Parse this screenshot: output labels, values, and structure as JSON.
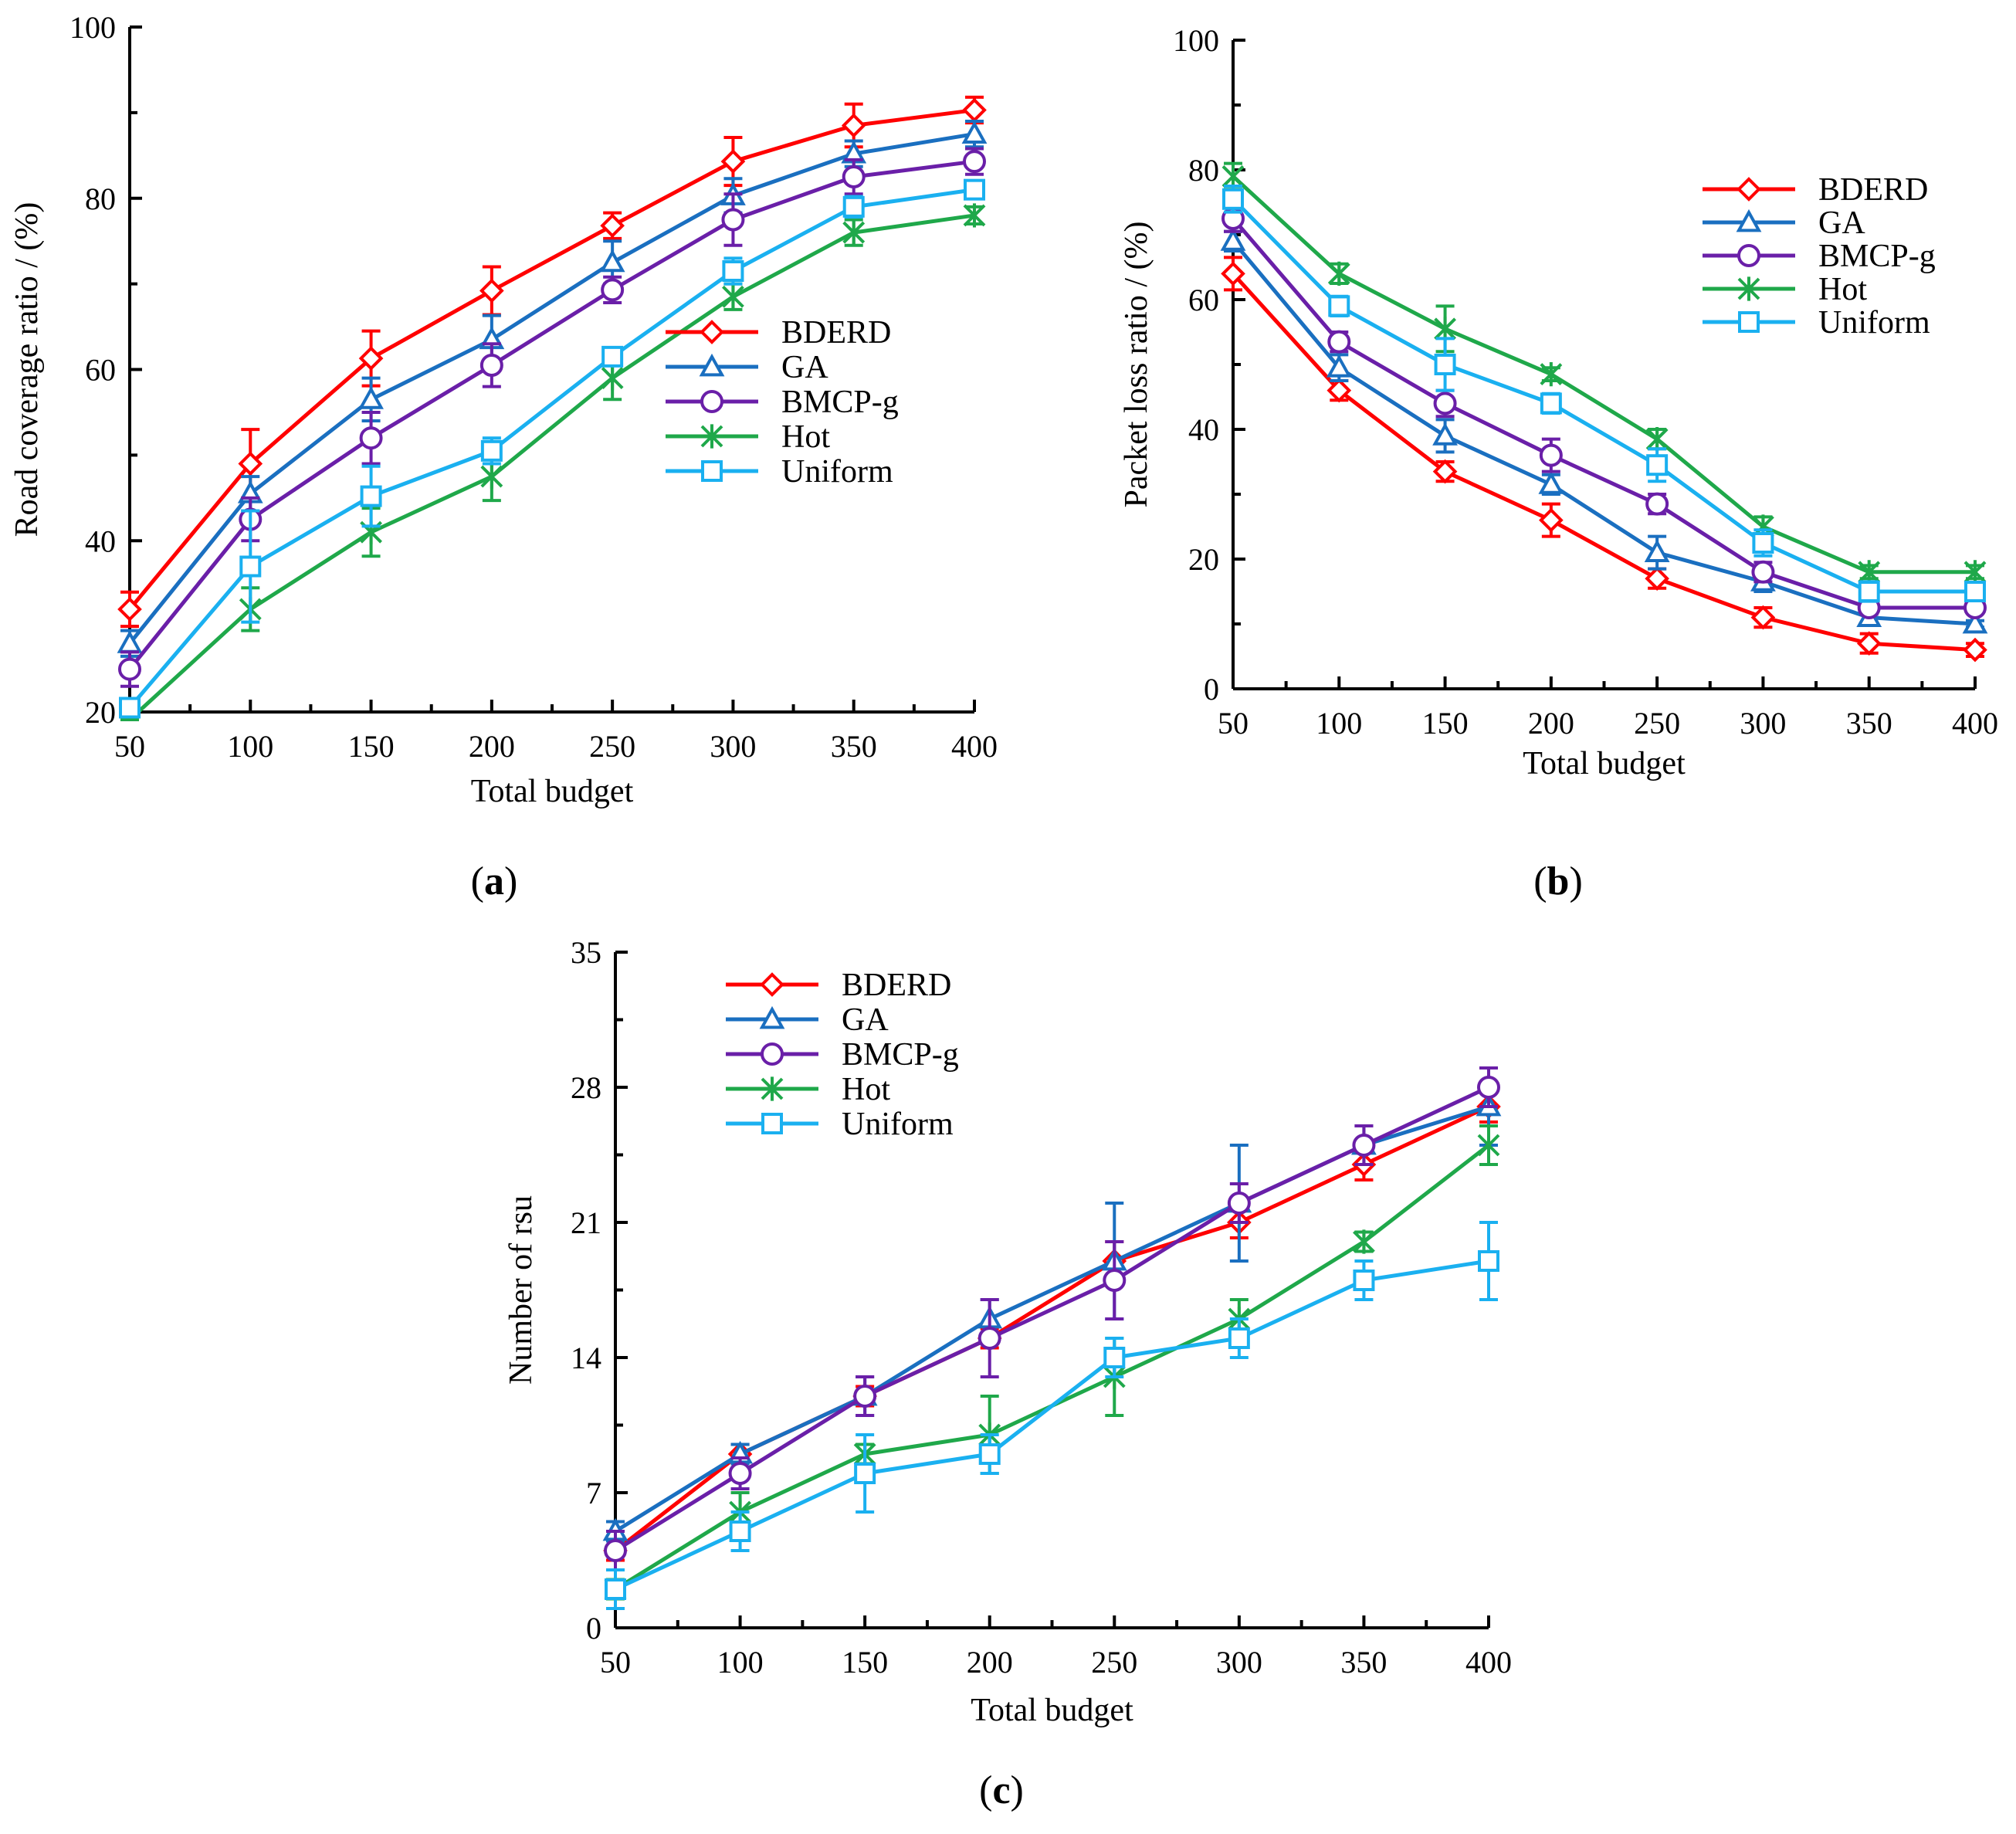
{
  "series_colors": {
    "BDERD": "#ff0000",
    "GA": "#1a6fc0",
    "BMCP-g": "#6a1fa8",
    "Hot": "#1fa84a",
    "Uniform": "#1ab0f0"
  },
  "chart_data": [
    {
      "id": "a",
      "type": "line",
      "panel_label": "(a)",
      "title": "",
      "xlabel": "Total budget",
      "ylabel": "Road coverage ratio / (%)",
      "x": [
        50,
        100,
        150,
        200,
        250,
        300,
        350,
        400
      ],
      "xlim": [
        50,
        400
      ],
      "ylim": [
        20,
        100
      ],
      "yticks": [
        20,
        40,
        60,
        80,
        100
      ],
      "grid": false,
      "legend": "center-right",
      "series": [
        {
          "name": "BDERD",
          "marker": "diamond",
          "values": [
            32,
            49,
            61.3,
            69.2,
            76.8,
            84.3,
            88.5,
            90.3
          ],
          "errors": [
            2,
            4,
            3.2,
            2.8,
            1.5,
            2.8,
            2.5,
            1.5
          ]
        },
        {
          "name": "GA",
          "marker": "triangle",
          "values": [
            28,
            45.5,
            56.5,
            63.5,
            72.5,
            80.3,
            85.2,
            87.5
          ],
          "errors": [
            1.5,
            2,
            2.5,
            2.8,
            2.5,
            2,
            1.5,
            1.5
          ]
        },
        {
          "name": "BMCP-g",
          "marker": "circle",
          "values": [
            25,
            42.5,
            52,
            60.5,
            69.3,
            77.5,
            82.5,
            84.3
          ],
          "errors": [
            2,
            2.5,
            3,
            2.5,
            1.5,
            3,
            2,
            1.5
          ]
        },
        {
          "name": "Hot",
          "marker": "asterisk",
          "values": [
            18.5,
            32,
            41,
            47.5,
            59,
            68.5,
            76,
            78
          ],
          "errors": [
            1,
            2.5,
            2.8,
            2.8,
            2.5,
            1.5,
            1.5,
            1
          ]
        },
        {
          "name": "Uniform",
          "marker": "square",
          "values": [
            20.5,
            37,
            45.2,
            50.5,
            61.5,
            71.5,
            79,
            81
          ],
          "errors": [
            1,
            6.5,
            3.5,
            1.5,
            1,
            1.5,
            1.2,
            1
          ]
        }
      ]
    },
    {
      "id": "b",
      "type": "line",
      "panel_label": "(b)",
      "title": "",
      "xlabel": "Total budget",
      "ylabel": "Packet loss ratio / (%)",
      "x": [
        50,
        100,
        150,
        200,
        250,
        300,
        350,
        400
      ],
      "xlim": [
        50,
        400
      ],
      "ylim": [
        0,
        100
      ],
      "yticks": [
        0,
        20,
        40,
        60,
        80,
        100
      ],
      "grid": false,
      "legend": "top-right",
      "series": [
        {
          "name": "BDERD",
          "marker": "diamond",
          "values": [
            64,
            46,
            33.5,
            26,
            17,
            11,
            7,
            6
          ],
          "errors": [
            2.5,
            1.5,
            1.5,
            2.5,
            1.5,
            1.5,
            1.5,
            1
          ]
        },
        {
          "name": "GA",
          "marker": "triangle",
          "values": [
            69,
            49.5,
            39,
            31.5,
            21,
            16.5,
            11,
            10
          ],
          "errors": [
            1.5,
            2,
            2.5,
            1.5,
            2.5,
            1.5,
            1,
            0.5
          ]
        },
        {
          "name": "BMCP-g",
          "marker": "circle",
          "values": [
            72.5,
            53.5,
            44,
            36,
            28.5,
            18,
            12.5,
            12.5
          ],
          "errors": [
            2,
            1.5,
            2,
            2.5,
            1.5,
            1.5,
            1,
            0.5
          ]
        },
        {
          "name": "Hot",
          "marker": "asterisk",
          "values": [
            79,
            64,
            55.5,
            48.5,
            38.5,
            25,
            18,
            18
          ],
          "errors": [
            2,
            1.5,
            3.5,
            1,
            1.5,
            1.5,
            1,
            1
          ]
        },
        {
          "name": "Uniform",
          "marker": "square",
          "values": [
            75.5,
            59,
            50,
            44,
            34.5,
            22.5,
            15,
            15
          ],
          "errors": [
            2,
            1.5,
            4,
            1.5,
            2.5,
            2,
            1.5,
            0.5
          ]
        }
      ]
    },
    {
      "id": "c",
      "type": "line",
      "panel_label": "(c)",
      "title": "",
      "xlabel": "Total budget",
      "ylabel": "Number of rsu",
      "x": [
        50,
        100,
        150,
        200,
        250,
        300,
        350,
        400
      ],
      "xlim": [
        50,
        400
      ],
      "ylim": [
        0,
        35
      ],
      "yticks": [
        0,
        7,
        14,
        21,
        28,
        35
      ],
      "grid": false,
      "legend": "top-left",
      "series": [
        {
          "name": "BDERD",
          "marker": "diamond",
          "values": [
            4,
            9,
            12,
            15,
            19,
            21,
            24,
            27
          ],
          "errors": [
            0.5,
            0.5,
            0.5,
            0.5,
            1,
            0.8,
            0.8,
            0.8
          ]
        },
        {
          "name": "GA",
          "marker": "triangle",
          "values": [
            5,
            9,
            12,
            16,
            19,
            22,
            25,
            27
          ],
          "errors": [
            0.5,
            0.5,
            1,
            1,
            3,
            3,
            1,
            2
          ]
        },
        {
          "name": "BMCP-g",
          "marker": "circle",
          "values": [
            4,
            8,
            12,
            15,
            18,
            22,
            25,
            28
          ],
          "errors": [
            1,
            0.8,
            1,
            2,
            2,
            1,
            1,
            1
          ]
        },
        {
          "name": "Hot",
          "marker": "asterisk",
          "values": [
            2,
            6,
            9,
            10,
            13,
            16,
            20,
            25
          ],
          "errors": [
            0.5,
            1,
            0.5,
            2,
            2,
            1,
            0.5,
            1
          ]
        },
        {
          "name": "Uniform",
          "marker": "square",
          "values": [
            2,
            5,
            8,
            9,
            14,
            15,
            18,
            19
          ],
          "errors": [
            1,
            1,
            2,
            1,
            1,
            1,
            1,
            2
          ]
        }
      ]
    }
  ]
}
